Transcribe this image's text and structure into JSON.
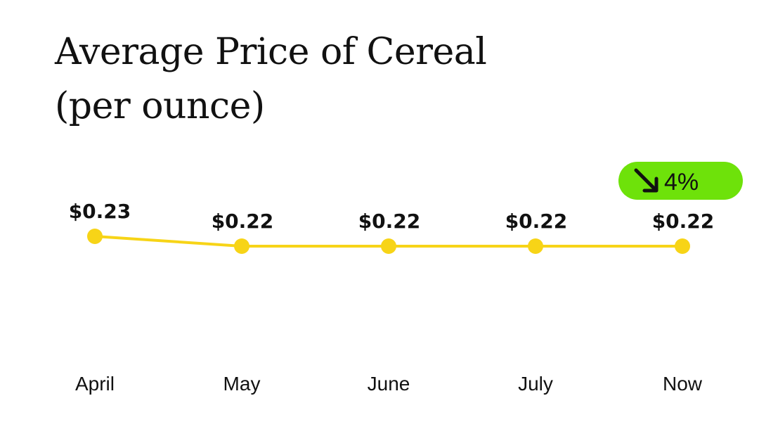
{
  "chart_data": {
    "type": "line",
    "title_lines": [
      "Average Price of Cereal",
      "(per ounce)"
    ],
    "categories": [
      "April",
      "May",
      "June",
      "July",
      "Now"
    ],
    "values": [
      0.23,
      0.22,
      0.22,
      0.22,
      0.22
    ],
    "value_labels": [
      "$0.23",
      "$0.22",
      "$0.22",
      "$0.22",
      "$0.22"
    ],
    "xlabel": "",
    "ylabel": "",
    "grid": false,
    "legend": "none",
    "line_color": "#f7d417",
    "change_badge": {
      "text": "4%",
      "direction": "down",
      "icon": "arrow-down-right-icon",
      "color": "#6ee20a"
    }
  }
}
